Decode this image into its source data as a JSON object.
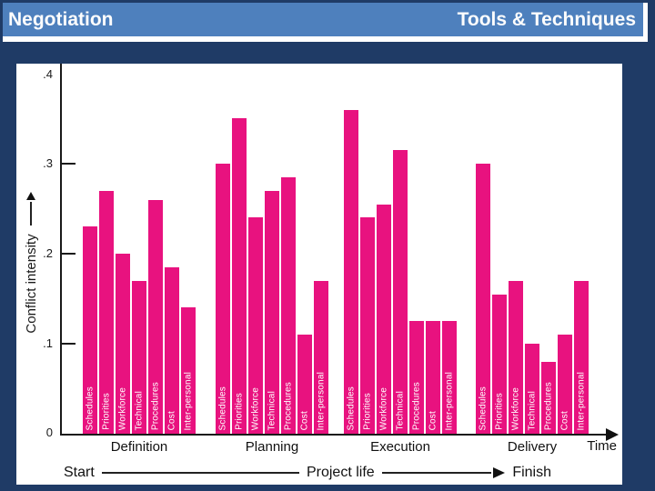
{
  "header": {
    "left_title": "Negotiation",
    "right_title": "Tools & Techniques"
  },
  "colors": {
    "navy_background": "#1F3B66",
    "header_blue": "#4E80BD",
    "header_text": "#FDFDFD",
    "bar_pink": "#E8127F",
    "panel_white": "#FFFFFF",
    "axis_black": "#1A1A1A"
  },
  "chart_data": {
    "type": "bar",
    "title": "",
    "ylabel": "Conflict intensity",
    "xlabel": "Time",
    "ylim": [
      0,
      0.4
    ],
    "ytick_labels": [
      ".4",
      ".3",
      ".2",
      ".1",
      "0"
    ],
    "ytick_values": [
      0.4,
      0.3,
      0.2,
      0.1,
      0
    ],
    "grid": "off",
    "legend": "none",
    "bar_categories": [
      "Schedules",
      "Priorities",
      "Workforce",
      "Technical",
      "Procedures",
      "Cost",
      "Inter-personal"
    ],
    "groups": [
      {
        "phase": "Definition",
        "values": [
          0.23,
          0.27,
          0.2,
          0.17,
          0.26,
          0.185,
          0.14
        ]
      },
      {
        "phase": "Planning",
        "values": [
          0.3,
          0.35,
          0.24,
          0.27,
          0.285,
          0.11,
          0.17
        ]
      },
      {
        "phase": "Execution",
        "values": [
          0.36,
          0.24,
          0.255,
          0.315,
          0.125,
          0.125,
          0.125
        ]
      },
      {
        "phase": "Delivery",
        "values": [
          0.3,
          0.155,
          0.17,
          0.1,
          0.08,
          0.11,
          0.17
        ]
      }
    ],
    "timeline": {
      "start_label": "Start",
      "mid_label": "Project life",
      "end_label": "Finish"
    }
  }
}
